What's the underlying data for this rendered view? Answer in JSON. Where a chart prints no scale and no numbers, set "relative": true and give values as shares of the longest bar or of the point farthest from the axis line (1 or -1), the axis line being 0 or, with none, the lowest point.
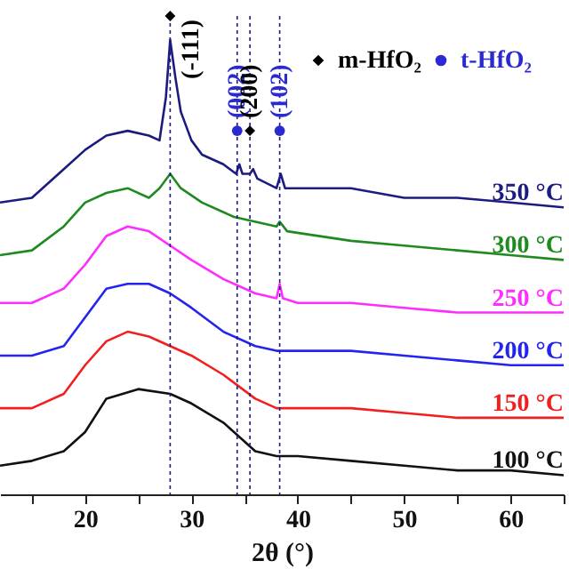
{
  "chart_data": {
    "type": "line",
    "relative": true,
    "xlabel": "2θ (°)",
    "xlim": [
      12,
      65
    ],
    "xticks": [
      {
        "value": 15,
        "label": null
      },
      20,
      {
        "value": 25,
        "label": null
      },
      30,
      {
        "value": 35,
        "label": null
      },
      40,
      {
        "value": 45,
        "label": null
      },
      50,
      {
        "value": 55,
        "label": null
      },
      60,
      {
        "value": 65,
        "label": null
      }
    ],
    "tick_labels": "x",
    "grid": false,
    "legend": "top right",
    "line_style": "solid",
    "series": [
      {
        "name": "350 °C",
        "color": "#1c1c80",
        "type": "line",
        "x": [
          12,
          15,
          18,
          20,
          22,
          24,
          26,
          27,
          27.6,
          28,
          28.5,
          29,
          30,
          31,
          33,
          34.2,
          34.5,
          34.8,
          35.5,
          35.8,
          36.2,
          38,
          38.4,
          38.8,
          42,
          45,
          50,
          55,
          60,
          65
        ],
        "values": [
          0.61,
          0.62,
          0.68,
          0.72,
          0.75,
          0.76,
          0.75,
          0.74,
          0.83,
          0.95,
          0.87,
          0.8,
          0.74,
          0.71,
          0.69,
          0.67,
          0.69,
          0.67,
          0.67,
          0.68,
          0.66,
          0.64,
          0.67,
          0.64,
          0.64,
          0.64,
          0.62,
          0.62,
          0.61,
          0.6
        ]
      },
      {
        "name": "300 °C",
        "color": "#1f8a1f",
        "type": "line",
        "x": [
          12,
          15,
          18,
          20,
          22,
          24,
          26,
          27,
          28,
          29,
          31,
          34,
          38,
          38.3,
          39,
          45,
          50,
          55,
          60,
          65
        ],
        "values": [
          0.5,
          0.51,
          0.56,
          0.61,
          0.63,
          0.64,
          0.62,
          0.64,
          0.67,
          0.64,
          0.61,
          0.58,
          0.56,
          0.57,
          0.55,
          0.53,
          0.52,
          0.51,
          0.5,
          0.49
        ]
      },
      {
        "name": "250 °C",
        "color": "#ff2cff",
        "type": "line",
        "x": [
          12,
          15,
          18,
          20,
          22,
          24,
          26,
          28,
          30,
          33,
          36,
          38,
          38.3,
          38.6,
          40,
          45,
          50,
          55,
          60,
          65
        ],
        "values": [
          0.4,
          0.4,
          0.43,
          0.48,
          0.54,
          0.56,
          0.55,
          0.52,
          0.49,
          0.45,
          0.42,
          0.41,
          0.44,
          0.41,
          0.4,
          0.4,
          0.39,
          0.38,
          0.38,
          0.38
        ]
      },
      {
        "name": "200 °C",
        "color": "#2424f0",
        "type": "line",
        "x": [
          12,
          15,
          18,
          20,
          22,
          24,
          26,
          28,
          30,
          33,
          36,
          38,
          40,
          45,
          50,
          55,
          60,
          65
        ],
        "values": [
          0.29,
          0.29,
          0.31,
          0.37,
          0.43,
          0.44,
          0.44,
          0.42,
          0.39,
          0.34,
          0.31,
          0.3,
          0.3,
          0.3,
          0.29,
          0.28,
          0.27,
          0.27
        ]
      },
      {
        "name": "150 °C",
        "color": "#f02020",
        "type": "line",
        "x": [
          12,
          15,
          18,
          20,
          22,
          24,
          26,
          28,
          30,
          33,
          36,
          38,
          40,
          45,
          50,
          55,
          60,
          65
        ],
        "values": [
          0.18,
          0.18,
          0.21,
          0.27,
          0.32,
          0.34,
          0.33,
          0.31,
          0.29,
          0.25,
          0.2,
          0.18,
          0.18,
          0.18,
          0.17,
          0.16,
          0.16,
          0.16
        ]
      },
      {
        "name": "100 °C",
        "color": "#111111",
        "type": "line",
        "x": [
          12,
          15,
          18,
          20,
          22,
          25,
          28,
          30,
          33,
          36,
          38,
          40,
          45,
          50,
          55,
          60,
          65
        ],
        "values": [
          0.06,
          0.07,
          0.09,
          0.13,
          0.2,
          0.22,
          0.21,
          0.19,
          0.15,
          0.09,
          0.08,
          0.08,
          0.07,
          0.06,
          0.05,
          0.05,
          0.04
        ]
      },
      {
        "name": "m-HfO₂",
        "color": "#000000",
        "type": "scatter",
        "marker": "diamond",
        "x": [
          28,
          35.5
        ],
        "values": [
          1,
          0.76
        ]
      },
      {
        "name": "t-HfO₂",
        "color": "#2a2ad0",
        "type": "scatter",
        "marker": "circle",
        "x": [
          34.3,
          38.3
        ],
        "values": [
          0.76,
          0.76
        ]
      }
    ],
    "ref_lines": [
      {
        "axis": "x",
        "value": 28,
        "color": "#1c1c80",
        "line_style": "dotted"
      },
      {
        "axis": "x",
        "value": 34.3,
        "color": "#1c1c80",
        "line_style": "dotted"
      },
      {
        "axis": "x",
        "value": 35.5,
        "color": "#1c1c80",
        "line_style": "dotted"
      },
      {
        "axis": "x",
        "value": 38.3,
        "color": "#1c1c80",
        "line_style": "dotted"
      }
    ],
    "annotations": [
      {
        "text": "(-111)",
        "x": 28,
        "y": 1
      },
      {
        "text": "(002)",
        "x": 34.3,
        "y": 0.76
      },
      {
        "text": "(200)",
        "x": 35.5,
        "y": 0.76
      },
      {
        "text": "(102)",
        "x": 38.3,
        "y": 0.76
      }
    ]
  }
}
